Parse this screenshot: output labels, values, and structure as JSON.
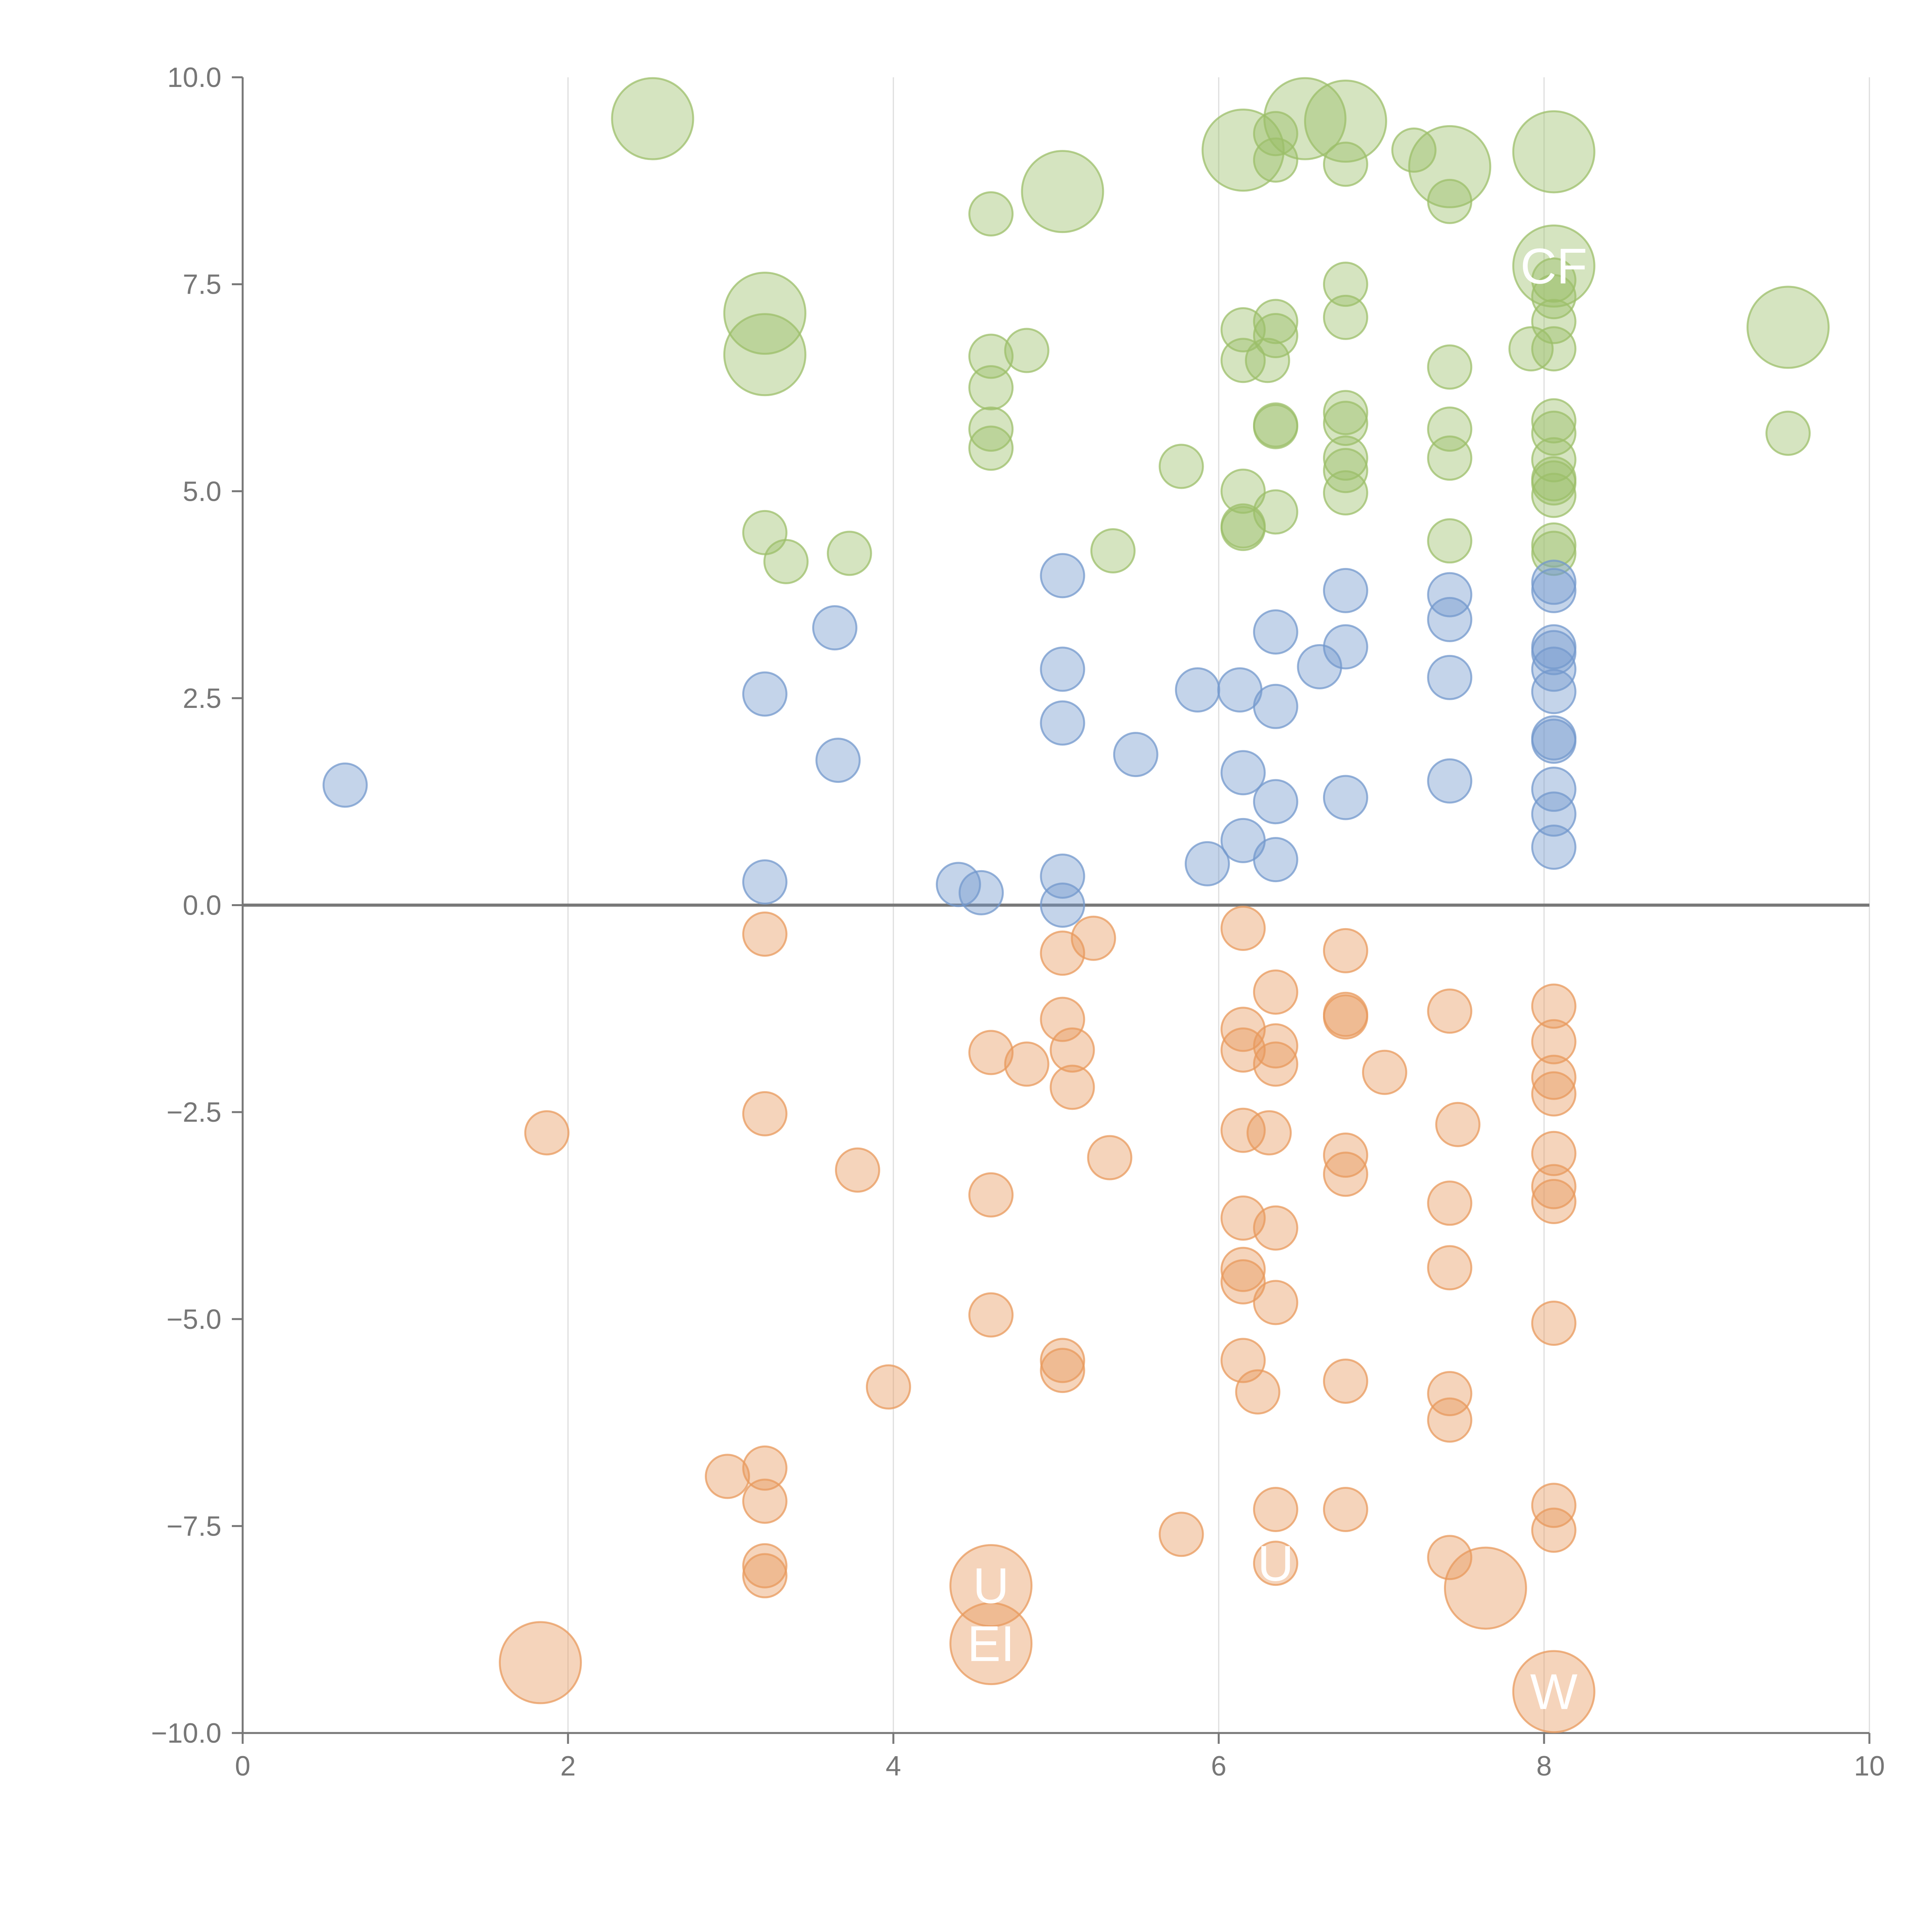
{
  "chart_data": {
    "type": "scatter",
    "subtype": "bubble",
    "title": "",
    "xlabel": "",
    "ylabel": "",
    "xlim": [
      0,
      10
    ],
    "ylim": [
      -10,
      10
    ],
    "x_ticks": [
      "0",
      "2",
      "4",
      "6",
      "8",
      "10"
    ],
    "y_ticks": [
      "10.0",
      "7.5",
      "5.0",
      "2.5",
      "0.0",
      "−2.5",
      "−5.0",
      "−7.5",
      "−10.0"
    ],
    "x_tick_values": [
      0,
      2,
      4,
      6,
      8,
      10
    ],
    "y_tick_values": [
      10,
      7.5,
      5,
      2.5,
      0,
      -2.5,
      -5,
      -7.5,
      -10
    ],
    "grid": "vertical",
    "reference_line_y": 0,
    "colors": {
      "green": "#9cbf6a",
      "blue": "#7398cc",
      "orange": "#e8995c",
      "axis": "#777777",
      "grid": "#dddddd",
      "zero_line": "#777777",
      "label": "#ffffff"
    },
    "series": [
      {
        "name": "green",
        "color": "#9cbf6a",
        "points": [
          [
            2.52,
            9.5,
            1
          ],
          [
            3.21,
            7.15,
            1
          ],
          [
            3.21,
            6.65,
            1
          ],
          [
            5.04,
            8.62,
            1
          ],
          [
            6.15,
            9.12,
            1
          ],
          [
            6.53,
            9.5,
            1
          ],
          [
            6.78,
            9.47,
            1
          ],
          [
            7.42,
            8.92,
            1
          ],
          [
            8.06,
            9.1,
            1
          ],
          [
            8.06,
            7.72,
            1
          ],
          [
            9.5,
            6.98,
            1
          ],
          [
            4.6,
            8.35,
            0
          ],
          [
            6.35,
            9.32,
            0
          ],
          [
            6.35,
            9.0,
            0
          ],
          [
            6.78,
            8.95,
            0
          ],
          [
            7.2,
            9.12,
            0
          ],
          [
            7.42,
            8.5,
            0
          ],
          [
            6.78,
            7.5,
            0
          ],
          [
            6.78,
            7.1,
            0
          ],
          [
            6.15,
            6.95,
            0
          ],
          [
            6.35,
            7.05,
            0
          ],
          [
            6.35,
            6.88,
            0
          ],
          [
            6.15,
            6.58,
            0
          ],
          [
            6.3,
            6.58,
            0
          ],
          [
            4.6,
            6.63,
            0
          ],
          [
            4.82,
            6.7,
            0
          ],
          [
            4.6,
            6.25,
            0
          ],
          [
            4.6,
            5.75,
            0
          ],
          [
            4.6,
            5.52,
            0
          ],
          [
            5.77,
            5.3,
            0
          ],
          [
            6.35,
            5.8,
            0
          ],
          [
            6.35,
            5.78,
            0
          ],
          [
            6.78,
            5.95,
            0
          ],
          [
            6.78,
            5.82,
            0
          ],
          [
            6.78,
            5.4,
            0
          ],
          [
            6.78,
            5.25,
            0
          ],
          [
            6.78,
            4.98,
            0
          ],
          [
            7.42,
            6.5,
            0
          ],
          [
            7.42,
            5.75,
            0
          ],
          [
            7.42,
            5.4,
            0
          ],
          [
            7.42,
            4.4,
            0
          ],
          [
            7.92,
            6.72,
            0
          ],
          [
            8.06,
            7.55,
            0
          ],
          [
            8.06,
            7.35,
            0
          ],
          [
            8.06,
            7.05,
            0
          ],
          [
            8.06,
            6.72,
            0
          ],
          [
            8.06,
            5.85,
            0
          ],
          [
            8.06,
            5.7,
            0
          ],
          [
            8.06,
            5.38,
            0
          ],
          [
            8.06,
            5.15,
            0
          ],
          [
            8.06,
            5.1,
            0
          ],
          [
            8.06,
            4.95,
            0
          ],
          [
            8.06,
            4.35,
            0
          ],
          [
            8.06,
            4.25,
            0
          ],
          [
            9.5,
            5.7,
            0
          ],
          [
            6.15,
            5.0,
            0
          ],
          [
            6.35,
            4.75,
            0
          ],
          [
            6.15,
            4.58,
            0
          ],
          [
            6.15,
            4.55,
            0
          ],
          [
            3.21,
            4.5,
            0
          ],
          [
            3.34,
            4.15,
            0
          ],
          [
            3.73,
            4.25,
            0
          ],
          [
            5.35,
            4.28,
            0
          ]
        ]
      },
      {
        "name": "blue",
        "color": "#7398cc",
        "points": [
          [
            0.63,
            1.45,
            0
          ],
          [
            3.21,
            2.55,
            0
          ],
          [
            3.21,
            0.28,
            0
          ],
          [
            3.64,
            3.35,
            0
          ],
          [
            3.66,
            1.75,
            0
          ],
          [
            4.4,
            0.25,
            0
          ],
          [
            4.54,
            0.15,
            0
          ],
          [
            5.04,
            3.98,
            0
          ],
          [
            5.04,
            2.85,
            0
          ],
          [
            5.04,
            2.2,
            0
          ],
          [
            5.04,
            0.35,
            0
          ],
          [
            5.04,
            0.0,
            0
          ],
          [
            5.49,
            1.82,
            0
          ],
          [
            5.87,
            2.6,
            0
          ],
          [
            5.93,
            0.5,
            0
          ],
          [
            6.13,
            2.6,
            0
          ],
          [
            6.15,
            1.6,
            0
          ],
          [
            6.15,
            0.78,
            0
          ],
          [
            6.35,
            3.3,
            0
          ],
          [
            6.35,
            2.4,
            0
          ],
          [
            6.35,
            1.25,
            0
          ],
          [
            6.35,
            0.55,
            0
          ],
          [
            6.62,
            2.88,
            0
          ],
          [
            6.78,
            3.8,
            0
          ],
          [
            6.78,
            3.12,
            0
          ],
          [
            6.78,
            1.3,
            0
          ],
          [
            7.42,
            3.75,
            0
          ],
          [
            7.42,
            3.45,
            0
          ],
          [
            7.42,
            2.75,
            0
          ],
          [
            7.42,
            1.5,
            0
          ],
          [
            8.06,
            3.9,
            0
          ],
          [
            8.06,
            3.8,
            0
          ],
          [
            8.06,
            3.12,
            0
          ],
          [
            8.06,
            3.05,
            0
          ],
          [
            8.06,
            2.85,
            0
          ],
          [
            8.06,
            2.58,
            0
          ],
          [
            8.06,
            2.02,
            0
          ],
          [
            8.06,
            1.98,
            0
          ],
          [
            8.06,
            1.4,
            0
          ],
          [
            8.06,
            1.1,
            0
          ],
          [
            8.06,
            0.7,
            0
          ]
        ]
      },
      {
        "name": "orange",
        "color": "#e8995c",
        "points": [
          [
            1.83,
            -9.15,
            1
          ],
          [
            4.6,
            -8.22,
            1
          ],
          [
            4.6,
            -8.92,
            1
          ],
          [
            7.64,
            -8.25,
            1
          ],
          [
            8.06,
            -9.5,
            1
          ],
          [
            1.87,
            -2.75,
            0
          ],
          [
            3.21,
            -0.35,
            0
          ],
          [
            3.21,
            -2.52,
            0
          ],
          [
            2.98,
            -6.9,
            0
          ],
          [
            3.21,
            -6.8,
            0
          ],
          [
            3.21,
            -7.2,
            0
          ],
          [
            3.21,
            -7.98,
            0
          ],
          [
            3.21,
            -8.1,
            0
          ],
          [
            3.78,
            -3.2,
            0
          ],
          [
            3.97,
            -5.82,
            0
          ],
          [
            4.6,
            -1.78,
            0
          ],
          [
            4.6,
            -3.5,
            0
          ],
          [
            4.6,
            -4.95,
            0
          ],
          [
            4.82,
            -1.92,
            0
          ],
          [
            5.04,
            -0.58,
            0
          ],
          [
            5.04,
            -1.38,
            0
          ],
          [
            5.04,
            -5.5,
            0
          ],
          [
            5.04,
            -5.62,
            0
          ],
          [
            5.1,
            -1.75,
            0
          ],
          [
            5.1,
            -2.2,
            0
          ],
          [
            5.23,
            -0.4,
            0
          ],
          [
            5.33,
            -3.05,
            0
          ],
          [
            5.77,
            -7.6,
            0
          ],
          [
            6.15,
            -0.28,
            0
          ],
          [
            6.15,
            -1.5,
            0
          ],
          [
            6.15,
            -1.75,
            0
          ],
          [
            6.15,
            -2.72,
            0
          ],
          [
            6.15,
            -3.78,
            0
          ],
          [
            6.15,
            -4.4,
            0
          ],
          [
            6.15,
            -4.55,
            0
          ],
          [
            6.15,
            -5.5,
            0
          ],
          [
            6.24,
            -5.88,
            0
          ],
          [
            6.31,
            -2.75,
            0
          ],
          [
            6.35,
            -1.05,
            0
          ],
          [
            6.35,
            -1.7,
            0
          ],
          [
            6.35,
            -1.92,
            0
          ],
          [
            6.35,
            -3.9,
            0
          ],
          [
            6.35,
            -4.8,
            0
          ],
          [
            6.35,
            -7.3,
            0
          ],
          [
            6.35,
            -7.95,
            0
          ],
          [
            6.78,
            -0.55,
            0
          ],
          [
            6.78,
            -1.32,
            0
          ],
          [
            6.78,
            -1.35,
            0
          ],
          [
            6.78,
            -3.02,
            0
          ],
          [
            6.78,
            -3.25,
            0
          ],
          [
            6.78,
            -5.75,
            0
          ],
          [
            6.78,
            -7.3,
            0
          ],
          [
            7.02,
            -2.02,
            0
          ],
          [
            7.42,
            -1.28,
            0
          ],
          [
            7.42,
            -3.6,
            0
          ],
          [
            7.42,
            -4.38,
            0
          ],
          [
            7.42,
            -5.9,
            0
          ],
          [
            7.42,
            -6.22,
            0
          ],
          [
            7.42,
            -7.88,
            0
          ],
          [
            7.47,
            -2.65,
            0
          ],
          [
            8.06,
            -1.22,
            0
          ],
          [
            8.06,
            -1.65,
            0
          ],
          [
            8.06,
            -2.08,
            0
          ],
          [
            8.06,
            -2.28,
            0
          ],
          [
            8.06,
            -3.0,
            0
          ],
          [
            8.06,
            -3.4,
            0
          ],
          [
            8.06,
            -3.58,
            0
          ],
          [
            8.06,
            -5.05,
            0
          ],
          [
            8.06,
            -7.25,
            0
          ],
          [
            8.06,
            -7.55,
            0
          ]
        ]
      }
    ],
    "labels": [
      {
        "text": "CF",
        "x": 8.06,
        "y": 7.72
      },
      {
        "text": "W",
        "x": 8.06,
        "y": -9.5
      },
      {
        "text": "U",
        "x": 6.35,
        "y": -7.95
      },
      {
        "text": "EI",
        "x": 4.6,
        "y": -8.92
      },
      {
        "text": "U",
        "x": 4.6,
        "y": -8.22
      }
    ]
  }
}
